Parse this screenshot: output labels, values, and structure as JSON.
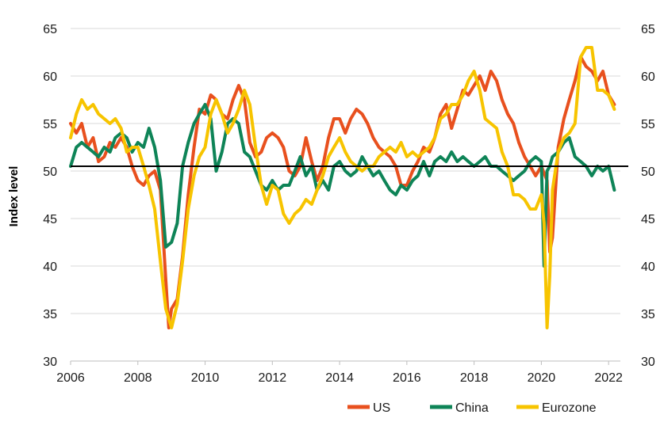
{
  "chart_data": {
    "type": "line",
    "title": "",
    "xlabel": "",
    "ylabel": "Index level",
    "xlim": [
      2006,
      2022.35
    ],
    "ylim": [
      30,
      65
    ],
    "reference_line": 50.5,
    "x_ticks": [
      "2006",
      "2008",
      "2010",
      "2012",
      "2014",
      "2016",
      "2018",
      "2020",
      "2022"
    ],
    "y_ticks": [
      "30",
      "35",
      "40",
      "45",
      "50",
      "55",
      "60",
      "65"
    ],
    "grid": "horizontal",
    "legend_position": "bottom-right",
    "colors": {
      "US": "#e8501e",
      "China": "#0e8457",
      "Eurozone": "#f7c400"
    },
    "series": [
      {
        "name": "US",
        "x": [
          2006.0,
          2006.17,
          2006.33,
          2006.5,
          2006.67,
          2006.83,
          2007.0,
          2007.17,
          2007.33,
          2007.5,
          2007.67,
          2007.83,
          2008.0,
          2008.17,
          2008.33,
          2008.5,
          2008.67,
          2008.83,
          2008.92,
          2009.0,
          2009.17,
          2009.33,
          2009.5,
          2009.67,
          2009.83,
          2010.0,
          2010.17,
          2010.33,
          2010.5,
          2010.67,
          2010.83,
          2011.0,
          2011.17,
          2011.33,
          2011.5,
          2011.67,
          2011.83,
          2012.0,
          2012.17,
          2012.33,
          2012.5,
          2012.67,
          2012.83,
          2013.0,
          2013.17,
          2013.33,
          2013.5,
          2013.67,
          2013.83,
          2014.0,
          2014.17,
          2014.33,
          2014.5,
          2014.67,
          2014.83,
          2015.0,
          2015.17,
          2015.33,
          2015.5,
          2015.67,
          2015.83,
          2016.0,
          2016.17,
          2016.33,
          2016.5,
          2016.67,
          2016.83,
          2017.0,
          2017.17,
          2017.33,
          2017.5,
          2017.67,
          2017.83,
          2018.0,
          2018.17,
          2018.33,
          2018.5,
          2018.67,
          2018.83,
          2019.0,
          2019.17,
          2019.33,
          2019.5,
          2019.67,
          2019.83,
          2020.0,
          2020.17,
          2020.25,
          2020.33,
          2020.5,
          2020.67,
          2020.83,
          2021.0,
          2021.17,
          2021.33,
          2021.5,
          2021.67,
          2021.83,
          2022.0,
          2022.17
        ],
        "values": [
          55.0,
          54.0,
          55.0,
          52.5,
          53.5,
          51.0,
          51.5,
          53.0,
          52.5,
          53.5,
          52.5,
          50.5,
          49.0,
          48.5,
          49.5,
          50.0,
          48.0,
          38.5,
          33.5,
          35.5,
          36.5,
          41.0,
          47.5,
          52.5,
          56.5,
          56.0,
          58.0,
          57.5,
          56.0,
          55.5,
          57.5,
          59.0,
          57.5,
          53.0,
          51.5,
          52.0,
          53.5,
          54.0,
          53.5,
          52.5,
          50.0,
          49.5,
          50.5,
          53.5,
          51.0,
          49.0,
          50.5,
          53.5,
          55.5,
          55.5,
          54.0,
          55.5,
          56.5,
          56.0,
          55.0,
          53.5,
          52.5,
          52.0,
          51.5,
          50.5,
          48.5,
          48.5,
          50.0,
          51.0,
          52.5,
          52.0,
          53.5,
          56.0,
          57.0,
          54.5,
          56.5,
          58.5,
          58.0,
          59.0,
          60.0,
          58.5,
          60.5,
          59.5,
          57.5,
          56.0,
          55.0,
          53.0,
          51.5,
          50.5,
          49.5,
          50.5,
          49.0,
          41.5,
          43.0,
          52.5,
          55.5,
          57.5,
          59.5,
          62.0,
          61.0,
          60.5,
          59.5,
          60.5,
          58.0,
          57.0
        ]
      },
      {
        "name": "China",
        "x": [
          2006.0,
          2006.17,
          2006.33,
          2006.5,
          2006.67,
          2006.83,
          2007.0,
          2007.17,
          2007.33,
          2007.5,
          2007.67,
          2007.83,
          2008.0,
          2008.17,
          2008.33,
          2008.5,
          2008.67,
          2008.83,
          2009.0,
          2009.17,
          2009.33,
          2009.5,
          2009.67,
          2009.83,
          2010.0,
          2010.17,
          2010.33,
          2010.5,
          2010.67,
          2010.83,
          2011.0,
          2011.17,
          2011.33,
          2011.5,
          2011.67,
          2011.83,
          2012.0,
          2012.17,
          2012.33,
          2012.5,
          2012.67,
          2012.83,
          2013.0,
          2013.17,
          2013.33,
          2013.5,
          2013.67,
          2013.83,
          2014.0,
          2014.17,
          2014.33,
          2014.5,
          2014.67,
          2014.83,
          2015.0,
          2015.17,
          2015.33,
          2015.5,
          2015.67,
          2015.83,
          2016.0,
          2016.17,
          2016.33,
          2016.5,
          2016.67,
          2016.83,
          2017.0,
          2017.17,
          2017.33,
          2017.5,
          2017.67,
          2017.83,
          2018.0,
          2018.17,
          2018.33,
          2018.5,
          2018.67,
          2018.83,
          2019.0,
          2019.17,
          2019.33,
          2019.5,
          2019.67,
          2019.83,
          2020.0,
          2020.08,
          2020.17,
          2020.25,
          2020.33,
          2020.5,
          2020.67,
          2020.83,
          2021.0,
          2021.17,
          2021.33,
          2021.5,
          2021.67,
          2021.83,
          2022.0,
          2022.17
        ],
        "values": [
          50.5,
          52.5,
          53.0,
          52.5,
          52.0,
          51.5,
          52.5,
          52.0,
          53.5,
          54.0,
          53.5,
          52.0,
          53.0,
          52.5,
          54.5,
          52.5,
          49.0,
          42.0,
          42.5,
          44.5,
          50.5,
          53.0,
          55.0,
          56.0,
          57.0,
          55.5,
          50.0,
          52.0,
          55.0,
          55.5,
          55.0,
          52.0,
          51.5,
          50.0,
          48.5,
          48.0,
          49.0,
          48.0,
          48.5,
          48.5,
          50.0,
          51.5,
          49.5,
          50.5,
          48.0,
          49.0,
          48.0,
          50.5,
          51.0,
          50.0,
          49.5,
          50.0,
          51.5,
          50.5,
          49.5,
          50.0,
          49.0,
          48.0,
          47.5,
          48.5,
          48.0,
          49.0,
          49.5,
          51.0,
          49.5,
          51.0,
          51.5,
          51.0,
          52.0,
          51.0,
          51.5,
          51.0,
          50.5,
          51.0,
          51.5,
          50.5,
          50.5,
          50.0,
          49.5,
          49.0,
          49.5,
          50.0,
          51.0,
          51.5,
          51.0,
          40.0,
          50.0,
          50.5,
          51.5,
          52.0,
          53.0,
          53.5,
          51.5,
          51.0,
          50.5,
          49.5,
          50.5,
          50.0,
          50.5,
          48.0
        ]
      },
      {
        "name": "Eurozone",
        "x": [
          2006.0,
          2006.17,
          2006.33,
          2006.5,
          2006.67,
          2006.83,
          2007.0,
          2007.17,
          2007.33,
          2007.5,
          2007.67,
          2007.83,
          2008.0,
          2008.17,
          2008.33,
          2008.5,
          2008.67,
          2008.83,
          2009.0,
          2009.17,
          2009.33,
          2009.5,
          2009.67,
          2009.83,
          2010.0,
          2010.17,
          2010.33,
          2010.5,
          2010.67,
          2010.83,
          2011.0,
          2011.17,
          2011.33,
          2011.5,
          2011.67,
          2011.83,
          2012.0,
          2012.17,
          2012.33,
          2012.5,
          2012.67,
          2012.83,
          2013.0,
          2013.17,
          2013.33,
          2013.5,
          2013.67,
          2013.83,
          2014.0,
          2014.17,
          2014.33,
          2014.5,
          2014.67,
          2014.83,
          2015.0,
          2015.17,
          2015.33,
          2015.5,
          2015.67,
          2015.83,
          2016.0,
          2016.17,
          2016.33,
          2016.5,
          2016.67,
          2016.83,
          2017.0,
          2017.17,
          2017.33,
          2017.5,
          2017.67,
          2017.83,
          2018.0,
          2018.17,
          2018.33,
          2018.5,
          2018.67,
          2018.83,
          2019.0,
          2019.17,
          2019.33,
          2019.5,
          2019.67,
          2019.83,
          2020.0,
          2020.08,
          2020.17,
          2020.25,
          2020.33,
          2020.5,
          2020.67,
          2020.83,
          2021.0,
          2021.17,
          2021.33,
          2021.5,
          2021.67,
          2021.83,
          2022.0,
          2022.17
        ],
        "values": [
          53.5,
          56.0,
          57.5,
          56.5,
          57.0,
          56.0,
          55.5,
          55.0,
          55.5,
          54.5,
          52.0,
          52.5,
          52.5,
          50.5,
          48.5,
          46.0,
          40.5,
          35.5,
          33.5,
          36.0,
          40.5,
          46.0,
          49.5,
          51.5,
          52.5,
          56.0,
          57.5,
          56.0,
          54.0,
          55.0,
          56.5,
          58.5,
          57.0,
          52.5,
          48.5,
          46.5,
          48.5,
          48.0,
          45.5,
          44.5,
          45.5,
          46.0,
          47.0,
          46.5,
          48.0,
          49.5,
          51.5,
          52.5,
          53.5,
          52.0,
          51.0,
          50.5,
          50.0,
          50.5,
          50.5,
          51.5,
          52.0,
          52.5,
          52.0,
          53.0,
          51.5,
          52.0,
          51.5,
          52.0,
          52.5,
          53.5,
          55.5,
          56.0,
          57.0,
          57.0,
          58.0,
          59.5,
          60.5,
          58.5,
          55.5,
          55.0,
          54.5,
          52.0,
          50.5,
          47.5,
          47.5,
          47.0,
          46.0,
          46.0,
          47.5,
          44.5,
          33.5,
          39.0,
          48.0,
          52.0,
          53.5,
          54.0,
          55.0,
          62.0,
          63.0,
          63.0,
          58.5,
          58.5,
          58.0,
          56.5
        ]
      }
    ]
  }
}
